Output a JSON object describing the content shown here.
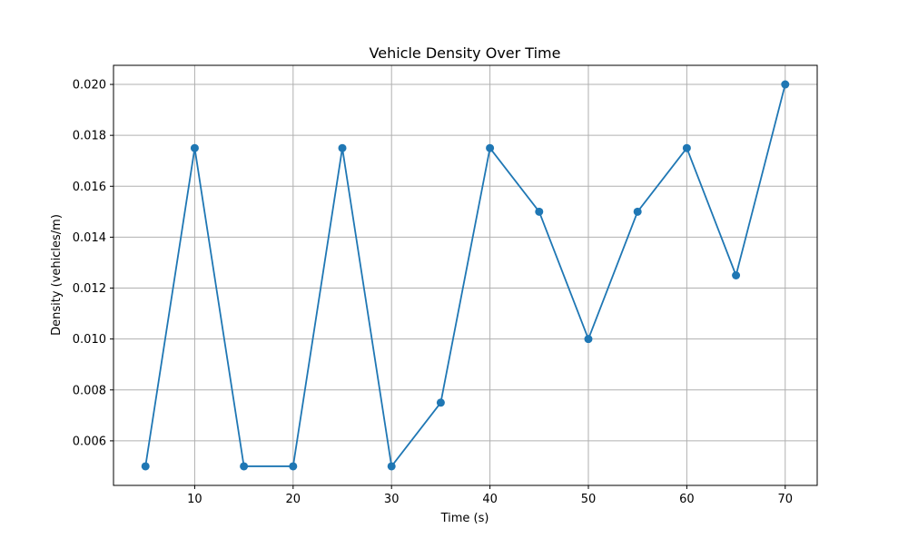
{
  "chart_data": {
    "type": "line",
    "title": "Vehicle Density Over Time",
    "xlabel": "Time (s)",
    "ylabel": "Density (vehicles/m)",
    "x": [
      5,
      10,
      15,
      20,
      25,
      30,
      35,
      40,
      45,
      50,
      55,
      60,
      65,
      70
    ],
    "series": [
      {
        "values": [
          0.005,
          0.0175,
          0.005,
          0.005,
          0.0175,
          0.005,
          0.0075,
          0.0175,
          0.015,
          0.01,
          0.015,
          0.0175,
          0.0125,
          0.02
        ]
      }
    ],
    "xlim": [
      1.75,
      73.25
    ],
    "ylim": [
      0.00425,
      0.02075
    ],
    "xticks": [
      10,
      20,
      30,
      40,
      50,
      60,
      70
    ],
    "xtick_labels": [
      "10",
      "20",
      "30",
      "40",
      "50",
      "60",
      "70"
    ],
    "yticks": [
      0.006,
      0.008,
      0.01,
      0.012,
      0.014,
      0.016,
      0.018,
      0.02
    ],
    "ytick_labels": [
      "0.006",
      "0.008",
      "0.010",
      "0.012",
      "0.014",
      "0.016",
      "0.018",
      "0.020"
    ],
    "grid": true,
    "marker": "circle",
    "line_color": "#1f77b4",
    "grid_color": "#b0b0b0"
  }
}
